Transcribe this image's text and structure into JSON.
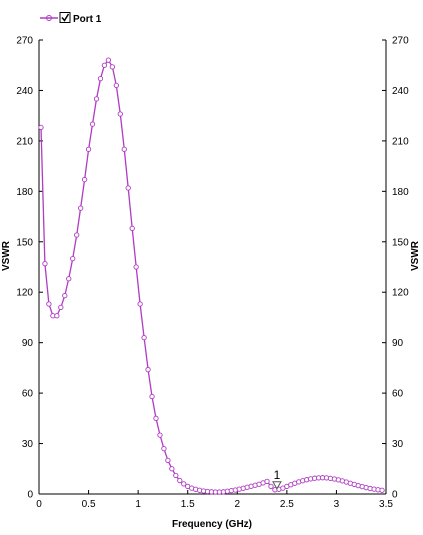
{
  "chart_data": {
    "type": "line",
    "xlabel": "Frequency (GHz)",
    "ylabel": "VSWR",
    "ylabel_right": "VSWR",
    "xlim": [
      0,
      3.5
    ],
    "ylim": [
      0,
      270
    ],
    "xticks": [
      "0",
      "0.5",
      "1",
      "1.5",
      "2",
      "2.5",
      "3",
      "3.5"
    ],
    "yticks": [
      "0",
      "30",
      "60",
      "90",
      "120",
      "150",
      "180",
      "210",
      "240",
      "270"
    ],
    "grid": false,
    "legend_position": "top-left",
    "legend": {
      "checkbox": "checked"
    },
    "colors": {
      "series": "#b03bc4",
      "axes": "#000000"
    },
    "series": [
      {
        "name": "Port 1",
        "x": [
          0.02,
          0.06,
          0.1,
          0.14,
          0.18,
          0.22,
          0.26,
          0.3,
          0.34,
          0.38,
          0.42,
          0.46,
          0.5,
          0.54,
          0.58,
          0.62,
          0.66,
          0.7,
          0.74,
          0.78,
          0.82,
          0.86,
          0.9,
          0.94,
          0.98,
          1.02,
          1.06,
          1.1,
          1.14,
          1.18,
          1.22,
          1.26,
          1.3,
          1.34,
          1.38,
          1.42,
          1.46,
          1.5,
          1.54,
          1.58,
          1.62,
          1.66,
          1.7,
          1.74,
          1.78,
          1.82,
          1.86,
          1.9,
          1.94,
          1.98,
          2.02,
          2.06,
          2.1,
          2.14,
          2.18,
          2.22,
          2.26,
          2.3,
          2.34,
          2.38,
          2.42,
          2.46,
          2.5,
          2.54,
          2.58,
          2.62,
          2.66,
          2.7,
          2.74,
          2.78,
          2.82,
          2.86,
          2.9,
          2.94,
          2.98,
          3.02,
          3.06,
          3.1,
          3.14,
          3.18,
          3.22,
          3.26,
          3.3,
          3.34,
          3.38,
          3.42,
          3.46
        ],
        "values": [
          218,
          137,
          113,
          106,
          106,
          111,
          118,
          128,
          140,
          154,
          170,
          187,
          205,
          220,
          235,
          247,
          255,
          258,
          254,
          243,
          226,
          205,
          182,
          158,
          135,
          113,
          93,
          74,
          58,
          45,
          35,
          27,
          20,
          15,
          11,
          8,
          6,
          4.5,
          3.5,
          2.8,
          2.2,
          1.8,
          1.5,
          1.3,
          1.2,
          1.2,
          1.3,
          1.6,
          2.0,
          2.4,
          2.9,
          3.4,
          4.0,
          4.6,
          5.2,
          5.8,
          6.6,
          7.5,
          4.5,
          2.5,
          2.8,
          3.5,
          4.5,
          5.5,
          6.4,
          7.2,
          7.9,
          8.5,
          9.0,
          9.4,
          9.6,
          9.7,
          9.6,
          9.3,
          8.9,
          8.4,
          7.8,
          7.1,
          6.4,
          5.7,
          5.0,
          4.4,
          3.8,
          3.3,
          2.9,
          2.5,
          2.2
        ]
      }
    ],
    "markers": [
      {
        "label": "1",
        "x": 2.4,
        "y": 2.5
      }
    ]
  }
}
